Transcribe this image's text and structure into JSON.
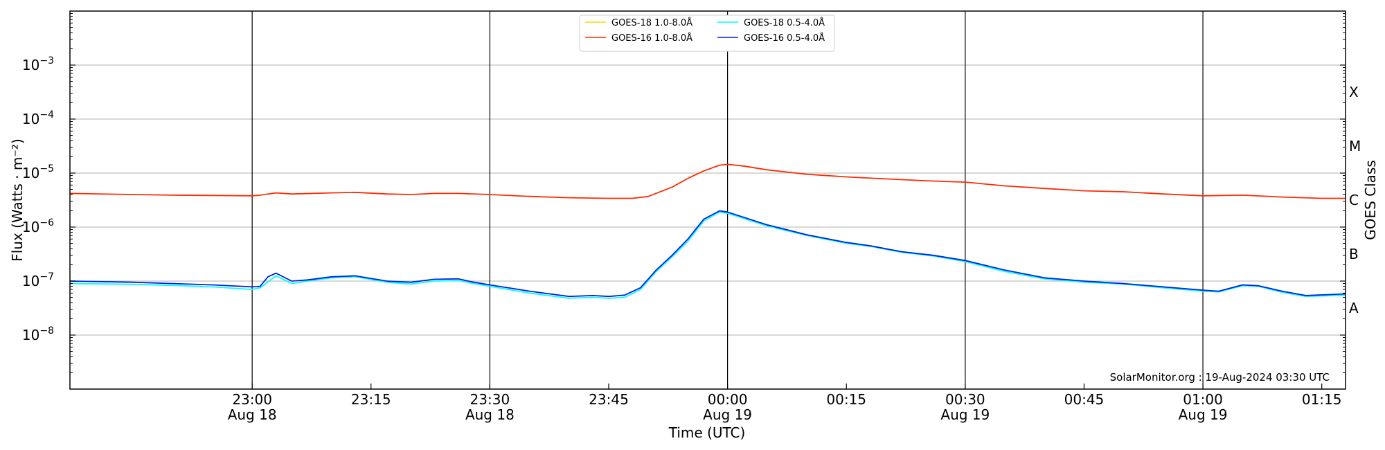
{
  "chart_data": {
    "type": "line",
    "title": "",
    "xlabel": "Time (UTC)",
    "ylabel": "Flux (Watts · m⁻²)",
    "y2label": "GOES Class",
    "yscale": "log",
    "ylim": [
      1e-09,
      0.01
    ],
    "xlim": [
      "2024-08-18 22:37",
      "2024-08-19 01:18"
    ],
    "grid": "horizontal at decades",
    "legend_position": "top-center",
    "credit": "SolarMonitor.org : 19-Aug-2024 03:30 UTC",
    "y_ticks": [
      {
        "value": 1e-08,
        "base": "10",
        "exp": "−8"
      },
      {
        "value": 1e-07,
        "base": "10",
        "exp": "−7"
      },
      {
        "value": 1e-06,
        "base": "10",
        "exp": "−6"
      },
      {
        "value": 1e-05,
        "base": "10",
        "exp": "−5"
      },
      {
        "value": 0.0001,
        "base": "10",
        "exp": "−4"
      },
      {
        "value": 0.001,
        "base": "10",
        "exp": "−3"
      }
    ],
    "goes_classes": [
      {
        "label": "X",
        "value": 0.000316
      },
      {
        "label": "M",
        "value": 3.16e-05
      },
      {
        "label": "C",
        "value": 3.16e-06
      },
      {
        "label": "B",
        "value": 3.16e-07
      },
      {
        "label": "A",
        "value": 3.16e-08
      }
    ],
    "x_ticks": [
      {
        "time": "2024-08-18 23:00",
        "label": "23:00",
        "sublabel": "Aug 18",
        "vline": true
      },
      {
        "time": "2024-08-18 23:15",
        "label": "23:15",
        "sublabel": "",
        "vline": false
      },
      {
        "time": "2024-08-18 23:30",
        "label": "23:30",
        "sublabel": "Aug 18",
        "vline": true
      },
      {
        "time": "2024-08-18 23:45",
        "label": "23:45",
        "sublabel": "",
        "vline": false
      },
      {
        "time": "2024-08-19 00:00",
        "label": "00:00",
        "sublabel": "Aug 19",
        "vline": true
      },
      {
        "time": "2024-08-19 00:15",
        "label": "00:15",
        "sublabel": "",
        "vline": false
      },
      {
        "time": "2024-08-19 00:30",
        "label": "00:30",
        "sublabel": "Aug 19",
        "vline": true
      },
      {
        "time": "2024-08-19 00:45",
        "label": "00:45",
        "sublabel": "",
        "vline": false
      },
      {
        "time": "2024-08-19 01:00",
        "label": "01:00",
        "sublabel": "Aug 19",
        "vline": true
      },
      {
        "time": "2024-08-19 01:15",
        "label": "01:15",
        "sublabel": "",
        "vline": false
      }
    ],
    "series": [
      {
        "name": "GOES-18 1.0-8.0Å",
        "color": "#ffd700",
        "x": [],
        "values": []
      },
      {
        "name": "GOES-16 1.0-8.0Å",
        "color": "#ff2a00",
        "x": [
          "2024-08-18 22:37",
          "2024-08-18 22:45",
          "2024-08-18 22:50",
          "2024-08-18 22:55",
          "2024-08-18 23:00",
          "2024-08-18 23:01",
          "2024-08-18 23:03",
          "2024-08-18 23:05",
          "2024-08-18 23:10",
          "2024-08-18 23:13",
          "2024-08-18 23:17",
          "2024-08-18 23:20",
          "2024-08-18 23:23",
          "2024-08-18 23:26",
          "2024-08-18 23:30",
          "2024-08-18 23:35",
          "2024-08-18 23:40",
          "2024-08-18 23:45",
          "2024-08-18 23:48",
          "2024-08-18 23:50",
          "2024-08-18 23:53",
          "2024-08-18 23:55",
          "2024-08-18 23:57",
          "2024-08-18 23:59",
          "2024-08-19 00:00",
          "2024-08-19 00:02",
          "2024-08-19 00:05",
          "2024-08-19 00:10",
          "2024-08-19 00:15",
          "2024-08-19 00:20",
          "2024-08-19 00:25",
          "2024-08-19 00:30",
          "2024-08-19 00:35",
          "2024-08-19 00:40",
          "2024-08-19 00:45",
          "2024-08-19 00:50",
          "2024-08-19 00:55",
          "2024-08-19 01:00",
          "2024-08-19 01:05",
          "2024-08-19 01:10",
          "2024-08-19 01:15",
          "2024-08-19 01:18"
        ],
        "values": [
          4.2e-06,
          4e-06,
          3.9e-06,
          3.85e-06,
          3.8e-06,
          3.9e-06,
          4.3e-06,
          4.1e-06,
          4.3e-06,
          4.4e-06,
          4.1e-06,
          4e-06,
          4.2e-06,
          4.2e-06,
          4e-06,
          3.7e-06,
          3.5e-06,
          3.4e-06,
          3.4e-06,
          3.7e-06,
          5.5e-06,
          8e-06,
          1.1e-05,
          1.4e-05,
          1.45e-05,
          1.35e-05,
          1.15e-05,
          9.5e-06,
          8.5e-06,
          7.8e-06,
          7.2e-06,
          6.8e-06,
          5.8e-06,
          5.2e-06,
          4.7e-06,
          4.5e-06,
          4.1e-06,
          3.8e-06,
          3.9e-06,
          3.6e-06,
          3.4e-06,
          3.4e-06
        ]
      },
      {
        "name": "GOES-18 0.5-4.0Å",
        "color": "#00ffff",
        "x": [
          "2024-08-18 22:37",
          "2024-08-18 22:45",
          "2024-08-18 22:50",
          "2024-08-18 22:55",
          "2024-08-18 23:00",
          "2024-08-18 23:01",
          "2024-08-18 23:03",
          "2024-08-18 23:05",
          "2024-08-18 23:07",
          "2024-08-18 23:10",
          "2024-08-18 23:13",
          "2024-08-18 23:17",
          "2024-08-18 23:20",
          "2024-08-18 23:23",
          "2024-08-18 23:26",
          "2024-08-18 23:28",
          "2024-08-18 23:30",
          "2024-08-18 23:35",
          "2024-08-18 23:40",
          "2024-08-18 23:43",
          "2024-08-18 23:45",
          "2024-08-18 23:47",
          "2024-08-18 23:49",
          "2024-08-18 23:51",
          "2024-08-18 23:53",
          "2024-08-18 23:55",
          "2024-08-18 23:57",
          "2024-08-18 23:59",
          "2024-08-19 00:00",
          "2024-08-19 00:05",
          "2024-08-19 00:10",
          "2024-08-19 00:15",
          "2024-08-19 00:18",
          "2024-08-19 00:22",
          "2024-08-19 00:26",
          "2024-08-19 00:30",
          "2024-08-19 00:35",
          "2024-08-19 00:40",
          "2024-08-19 00:45",
          "2024-08-19 00:50",
          "2024-08-19 00:55",
          "2024-08-19 01:00",
          "2024-08-19 01:02",
          "2024-08-19 01:05",
          "2024-08-19 01:07",
          "2024-08-19 01:10",
          "2024-08-19 01:13",
          "2024-08-19 01:18"
        ],
        "values": [
          9e-08,
          8.7e-08,
          8.3e-08,
          7.8e-08,
          7e-08,
          7.5e-08,
          1.25e-07,
          9e-08,
          1e-07,
          1.15e-07,
          1.2e-07,
          9.5e-08,
          8.8e-08,
          1e-07,
          1.02e-07,
          9e-08,
          8e-08,
          6e-08,
          4.8e-08,
          5e-08,
          4.8e-08,
          5e-08,
          7e-08,
          1.5e-07,
          2.8e-07,
          5.5e-07,
          1.3e-06,
          1.9e-06,
          1.8e-06,
          1.05e-06,
          7e-07,
          5e-07,
          4.4e-07,
          3.4e-07,
          2.9e-07,
          2.3e-07,
          1.5e-07,
          1.1e-07,
          9.5e-08,
          8.8e-08,
          7.5e-08,
          6.5e-08,
          6.3e-08,
          8.2e-08,
          8e-08,
          6.2e-08,
          5.2e-08,
          5.5e-08
        ]
      },
      {
        "name": "GOES-16 0.5-4.0Å",
        "color": "#0020e0",
        "x": [
          "2024-08-18 22:37",
          "2024-08-18 22:45",
          "2024-08-18 22:50",
          "2024-08-18 22:55",
          "2024-08-18 23:00",
          "2024-08-18 23:01",
          "2024-08-18 23:02",
          "2024-08-18 23:03",
          "2024-08-18 23:05",
          "2024-08-18 23:07",
          "2024-08-18 23:10",
          "2024-08-18 23:13",
          "2024-08-18 23:17",
          "2024-08-18 23:20",
          "2024-08-18 23:23",
          "2024-08-18 23:26",
          "2024-08-18 23:28",
          "2024-08-18 23:30",
          "2024-08-18 23:35",
          "2024-08-18 23:40",
          "2024-08-18 23:43",
          "2024-08-18 23:45",
          "2024-08-18 23:47",
          "2024-08-18 23:49",
          "2024-08-18 23:51",
          "2024-08-18 23:53",
          "2024-08-18 23:55",
          "2024-08-18 23:57",
          "2024-08-18 23:59",
          "2024-08-19 00:00",
          "2024-08-19 00:05",
          "2024-08-19 00:10",
          "2024-08-19 00:15",
          "2024-08-19 00:18",
          "2024-08-19 00:22",
          "2024-08-19 00:26",
          "2024-08-19 00:30",
          "2024-08-19 00:35",
          "2024-08-19 00:40",
          "2024-08-19 00:45",
          "2024-08-19 00:50",
          "2024-08-19 00:55",
          "2024-08-19 01:00",
          "2024-08-19 01:02",
          "2024-08-19 01:05",
          "2024-08-19 01:07",
          "2024-08-19 01:10",
          "2024-08-19 01:13",
          "2024-08-19 01:18"
        ],
        "values": [
          1e-07,
          9.5e-08,
          9e-08,
          8.5e-08,
          7.8e-08,
          8e-08,
          1.2e-07,
          1.4e-07,
          1e-07,
          1.05e-07,
          1.2e-07,
          1.25e-07,
          1e-07,
          9.5e-08,
          1.08e-07,
          1.1e-07,
          9.5e-08,
          8.5e-08,
          6.5e-08,
          5.2e-08,
          5.4e-08,
          5.2e-08,
          5.5e-08,
          7.5e-08,
          1.6e-07,
          3e-07,
          6e-07,
          1.4e-06,
          2e-06,
          1.9e-06,
          1.1e-06,
          7.2e-07,
          5.2e-07,
          4.5e-07,
          3.5e-07,
          3e-07,
          2.4e-07,
          1.6e-07,
          1.15e-07,
          1e-07,
          9e-08,
          7.8e-08,
          6.8e-08,
          6.5e-08,
          8.5e-08,
          8.2e-08,
          6.5e-08,
          5.4e-08,
          5.8e-08
        ]
      }
    ]
  }
}
